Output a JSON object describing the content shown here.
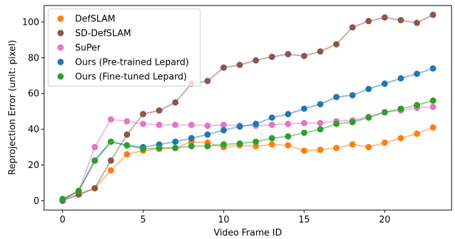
{
  "chart_data": {
    "type": "line",
    "title": "",
    "xlabel": "Video Frame ID",
    "ylabel": "Reprojection Error (unit: pixel)",
    "xlim": [
      -1.15,
      24.15
    ],
    "ylim": [
      -5.2,
      109.2
    ],
    "xticks": [
      0,
      5,
      10,
      15,
      20
    ],
    "yticks": [
      0,
      20,
      40,
      60,
      80,
      100
    ],
    "grid": false,
    "legend_position": "top-left",
    "x": [
      0,
      1,
      2,
      3,
      4,
      5,
      6,
      7,
      8,
      9,
      10,
      11,
      12,
      13,
      14,
      15,
      16,
      17,
      18,
      19,
      20,
      21,
      22,
      23
    ],
    "series": [
      {
        "name": "DefSLAM",
        "color": "#ff7f0e",
        "values": [
          0.5,
          3.5,
          7.0,
          17.0,
          26.0,
          28.0,
          29.0,
          29.5,
          33.0,
          32.5,
          30.0,
          31.0,
          30.5,
          31.5,
          31.0,
          28.0,
          28.5,
          29.5,
          31.5,
          30.0,
          32.5,
          35.0,
          37.5,
          41.0
        ]
      },
      {
        "name": "SD-DefSLAM",
        "color": "#8c564b",
        "values": [
          0.0,
          3.5,
          7.0,
          22.5,
          37.0,
          48.5,
          50.5,
          55.0,
          65.5,
          67.0,
          74.5,
          76.0,
          78.5,
          80.5,
          82.0,
          81.0,
          83.5,
          87.5,
          97.0,
          100.5,
          102.5,
          101.0,
          99.5,
          104.0
        ]
      },
      {
        "name": "SuPer",
        "color": "#e377c2",
        "values": [
          0.5,
          5.5,
          30.0,
          45.5,
          44.5,
          43.0,
          42.5,
          42.5,
          42.5,
          42.0,
          42.5,
          42.0,
          42.0,
          42.5,
          43.0,
          43.5,
          43.5,
          44.5,
          45.0,
          47.0,
          49.5,
          50.5,
          52.0,
          52.5
        ]
      },
      {
        "name": "Ours (Pre-trained Lepard)",
        "color": "#1f77b4",
        "values": [
          0.5,
          5.5,
          22.5,
          33.0,
          31.0,
          30.0,
          31.5,
          33.0,
          35.0,
          37.0,
          39.5,
          41.5,
          43.0,
          46.5,
          48.5,
          51.5,
          54.0,
          58.0,
          59.0,
          62.5,
          65.5,
          68.5,
          71.0,
          74.0
        ]
      },
      {
        "name": "Ours (Fine-tuned Lepard)",
        "color": "#2ca02c",
        "values": [
          1.0,
          5.5,
          22.5,
          33.0,
          31.0,
          29.0,
          29.5,
          29.5,
          30.5,
          30.5,
          31.5,
          32.0,
          33.0,
          35.0,
          36.0,
          38.0,
          40.0,
          43.0,
          44.0,
          46.5,
          49.5,
          51.5,
          53.5,
          56.0
        ]
      }
    ]
  }
}
